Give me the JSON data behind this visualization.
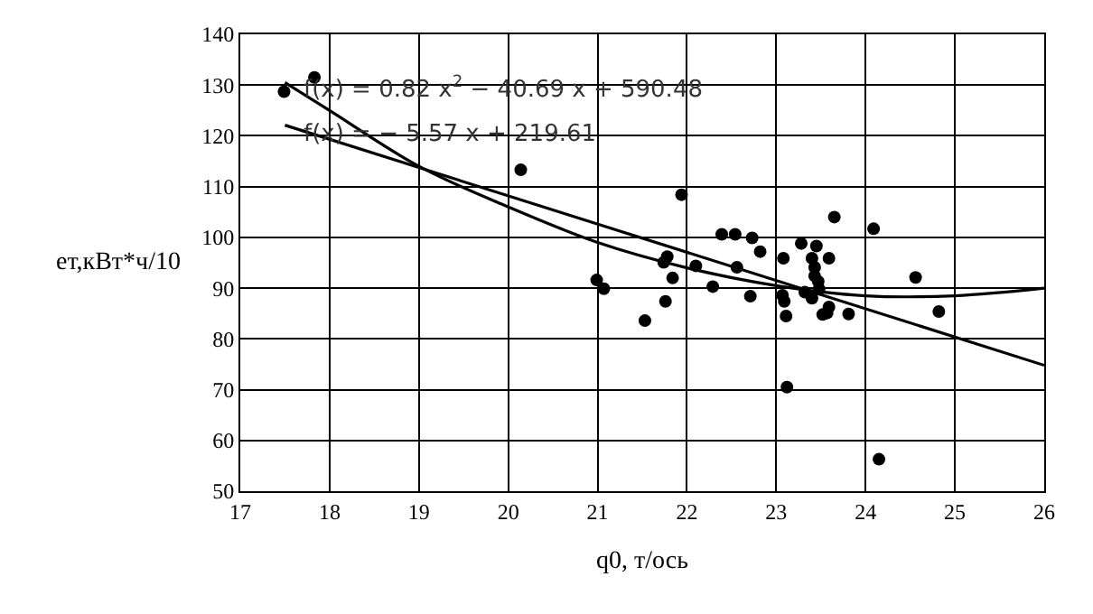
{
  "chart_data": {
    "type": "scatter",
    "xlabel": "q0, т/ось",
    "ylabel": "ет,кВт*ч/10",
    "annotations": [
      "f(x) = 0.82 x$^{2}$ − 40.69 x + 590.48",
      "f(x) = − 5.57 x + 219.61"
    ],
    "xlim": [
      17,
      26
    ],
    "xticks": [
      17,
      18,
      19,
      20,
      21,
      22,
      23,
      24,
      25,
      26
    ],
    "ylim": [
      50,
      140
    ],
    "yticks": [
      50,
      60,
      70,
      80,
      90,
      100,
      110,
      120,
      130,
      140
    ],
    "grid": true,
    "series": [
      {
        "marker": "circle",
        "color": "#000000",
        "x": [
          17.49,
          17.83,
          20.14,
          21.94,
          20.99,
          21.07,
          21.53,
          21.76,
          21.74,
          21.78,
          21.84,
          22.1,
          22.29,
          22.39,
          22.54,
          22.56,
          22.71,
          22.73,
          22.82,
          23.08,
          23.07,
          23.09,
          23.11,
          23.12,
          23.28,
          23.45,
          23.4,
          23.59,
          23.43,
          23.43,
          23.47,
          23.32,
          23.4,
          23.48,
          23.59,
          23.52,
          23.57,
          23.65,
          23.81,
          24.09,
          24.15,
          24.56,
          24.82
        ],
        "values": [
          128.7,
          131.5,
          113.3,
          108.4,
          91.6,
          89.9,
          83.6,
          87.4,
          95.1,
          96.2,
          92.0,
          94.4,
          90.3,
          100.6,
          100.6,
          94.1,
          88.4,
          99.9,
          97.2,
          95.9,
          88.6,
          87.4,
          84.5,
          70.5,
          98.8,
          98.3,
          95.9,
          95.9,
          94.1,
          92.4,
          91.3,
          89.2,
          88.0,
          89.8,
          86.3,
          84.8,
          85.1,
          104.0,
          84.9,
          101.7,
          56.3,
          92.1,
          85.4
        ]
      },
      {
        "type": "line",
        "marker": "none",
        "line_style": "solid",
        "color": "#000000",
        "x": [
          17.5,
          18,
          19,
          20,
          21,
          22,
          23,
          24,
          25,
          26
        ],
        "values": [
          130.5,
          125,
          114,
          106,
          99,
          94,
          90.5,
          88.5,
          88.5,
          90
        ]
      },
      {
        "type": "line",
        "marker": "none",
        "line_style": "solid",
        "color": "#000000",
        "x": [
          17.5,
          26
        ],
        "values": [
          122.1,
          74.8
        ]
      }
    ]
  }
}
